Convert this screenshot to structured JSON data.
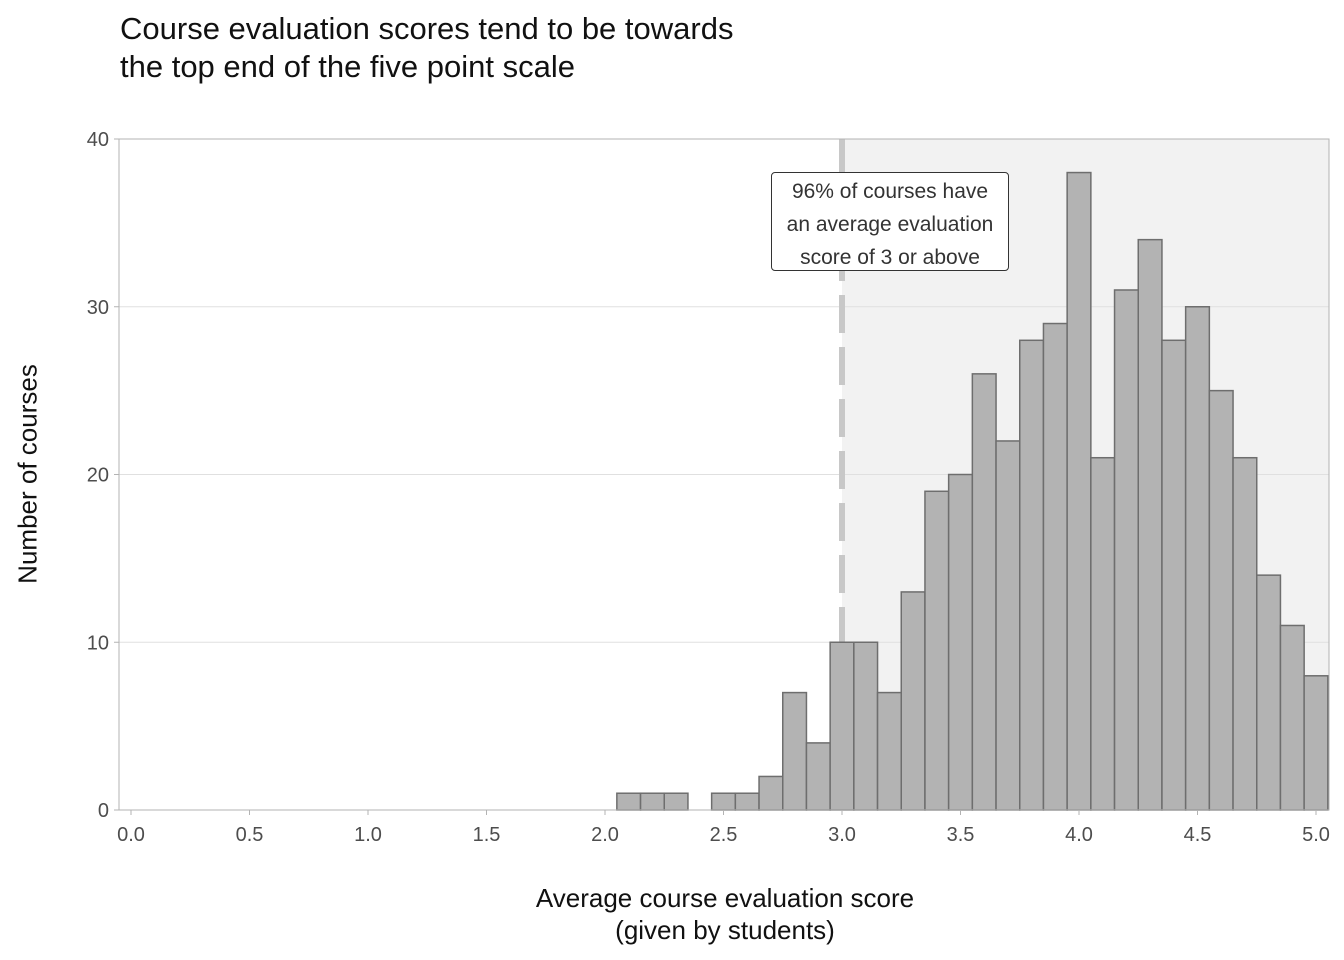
{
  "chart_data": {
    "type": "bar",
    "title_lines": [
      "Course evaluation scores tend to be towards",
      "the top end of the five point scale"
    ],
    "xlabel_lines": [
      "Average course evaluation score",
      "(given by students)"
    ],
    "ylabel": "Number of courses",
    "xlim": [
      0,
      5
    ],
    "ylim": [
      0,
      40
    ],
    "xticks": [
      "0.0",
      "0.5",
      "1.0",
      "1.5",
      "2.0",
      "2.5",
      "3.0",
      "3.5",
      "4.0",
      "4.5",
      "5.0"
    ],
    "yticks": [
      "0",
      "10",
      "20",
      "30",
      "40"
    ],
    "grid": "horizontal",
    "bin_width": 0.1,
    "bins": [
      {
        "x": 2.1,
        "count": 1
      },
      {
        "x": 2.2,
        "count": 1
      },
      {
        "x": 2.3,
        "count": 1
      },
      {
        "x": 2.5,
        "count": 1
      },
      {
        "x": 2.6,
        "count": 1
      },
      {
        "x": 2.7,
        "count": 2
      },
      {
        "x": 2.8,
        "count": 7
      },
      {
        "x": 2.9,
        "count": 4
      },
      {
        "x": 3.0,
        "count": 10
      },
      {
        "x": 3.1,
        "count": 10
      },
      {
        "x": 3.2,
        "count": 7
      },
      {
        "x": 3.3,
        "count": 13
      },
      {
        "x": 3.4,
        "count": 19
      },
      {
        "x": 3.5,
        "count": 20
      },
      {
        "x": 3.6,
        "count": 26
      },
      {
        "x": 3.7,
        "count": 22
      },
      {
        "x": 3.8,
        "count": 28
      },
      {
        "x": 3.9,
        "count": 29
      },
      {
        "x": 4.0,
        "count": 38
      },
      {
        "x": 4.1,
        "count": 21
      },
      {
        "x": 4.2,
        "count": 31
      },
      {
        "x": 4.3,
        "count": 34
      },
      {
        "x": 4.4,
        "count": 28
      },
      {
        "x": 4.5,
        "count": 30
      },
      {
        "x": 4.6,
        "count": 25
      },
      {
        "x": 4.7,
        "count": 21
      },
      {
        "x": 4.8,
        "count": 14
      },
      {
        "x": 4.9,
        "count": 11
      },
      {
        "x": 5.0,
        "count": 8
      }
    ],
    "reference_line_x": 3.0,
    "shaded_region_x": [
      3.0,
      5.0
    ],
    "annotation_lines": [
      "96% of courses have",
      "an average evaluation",
      "score of 3 or above"
    ],
    "colors": {
      "bar_fill": "#b3b3b3",
      "bar_stroke": "#6e6e6e",
      "shade": "#f2f2f2",
      "refline": "#c8c8c8",
      "grid": "#e0e0e0",
      "axis": "#b3b3b3"
    }
  }
}
